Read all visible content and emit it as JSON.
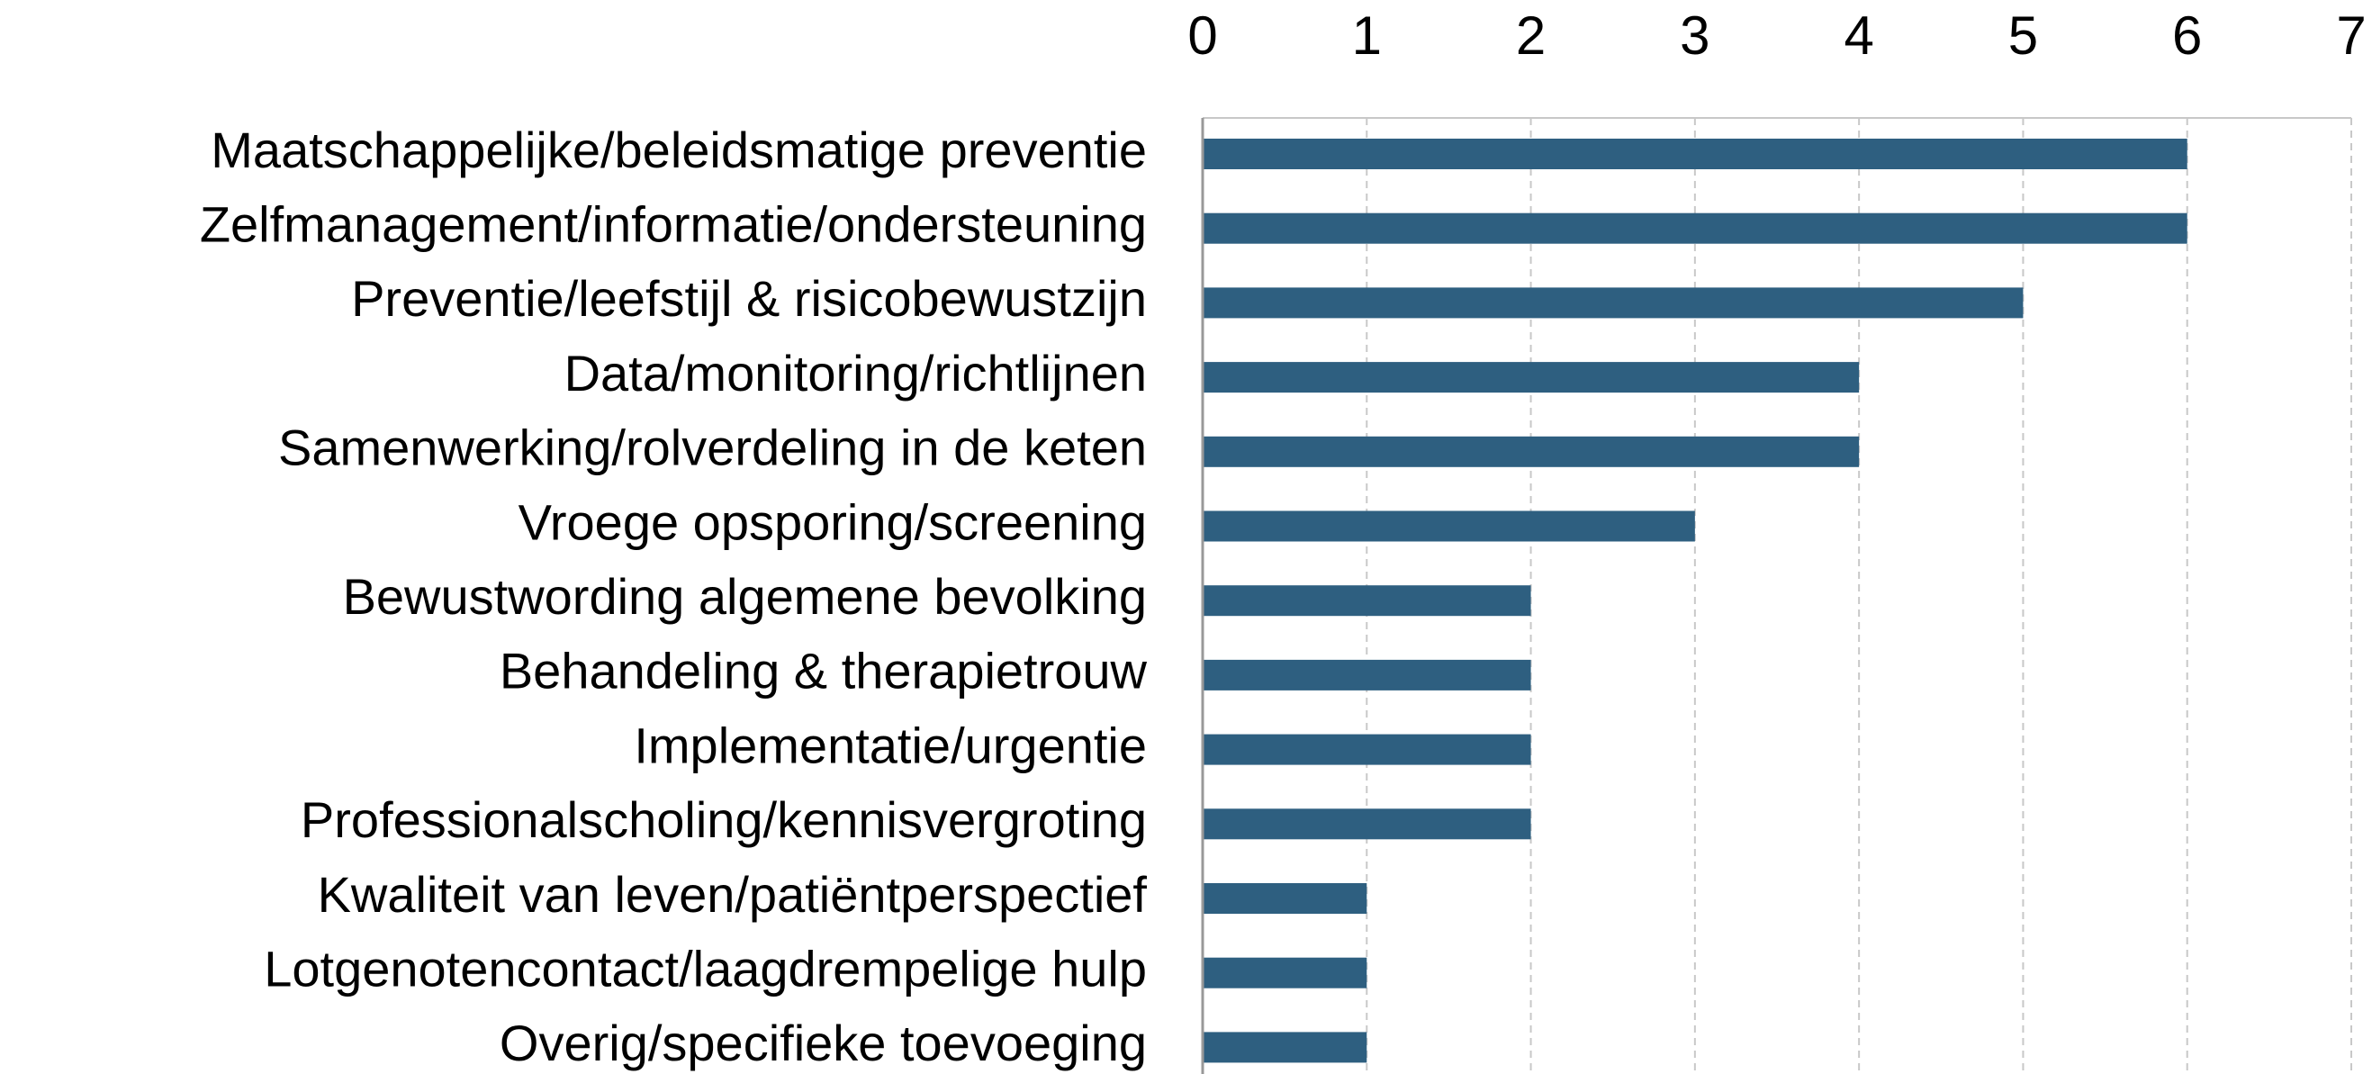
{
  "chart_data": {
    "type": "bar",
    "orientation": "horizontal",
    "categories": [
      "Maatschappelijke/beleidsmatige preventie",
      "Zelfmanagement/informatie/ondersteuning",
      "Preventie/leefstijl & risicobewustzijn",
      "Data/monitoring/richtlijnen",
      "Samenwerking/rolverdeling in de keten",
      "Vroege opsporing/screening",
      "Bewustwording algemene bevolking",
      "Behandeling & therapietrouw",
      "Implementatie/urgentie",
      "Professionalscholing/kennisvergroting",
      "Kwaliteit van leven/patiëntperspectief",
      "Lotgenotencontact/laagdrempelige hulp",
      "Overig/specifieke toevoeging"
    ],
    "values": [
      6,
      6,
      5,
      4,
      4,
      3,
      2,
      2,
      2,
      2,
      1,
      1,
      1
    ],
    "color": "#2e5f80",
    "xlim": [
      0,
      7
    ],
    "xticks": [
      0,
      1,
      2,
      3,
      4,
      5,
      6,
      7
    ],
    "grid": true
  }
}
